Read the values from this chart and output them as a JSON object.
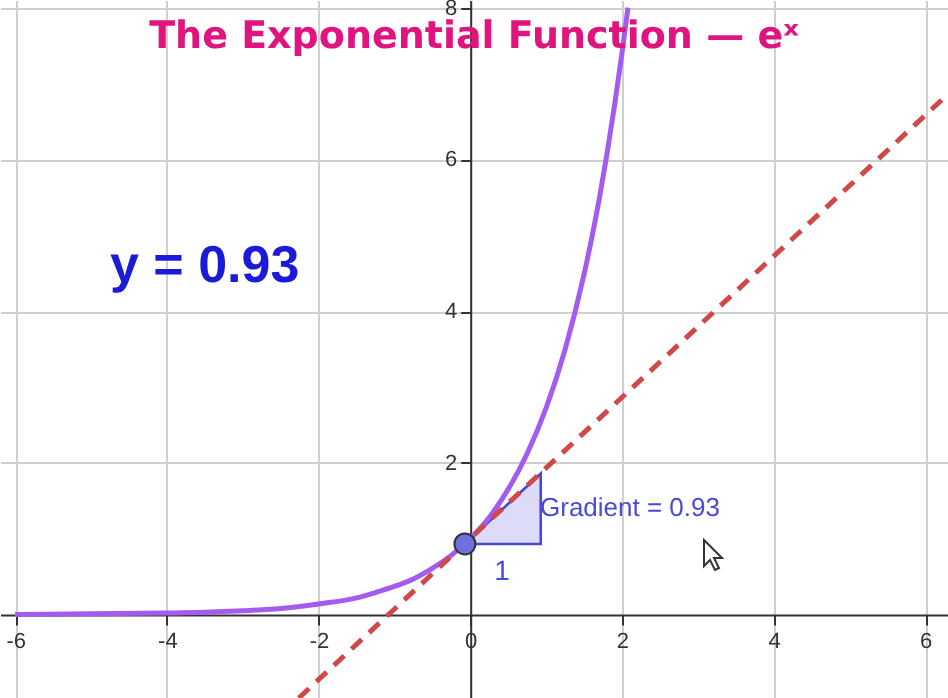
{
  "chart_data": {
    "type": "line",
    "title": "The Exponential Function — eˣ",
    "xlim": [
      -6.2,
      6.3
    ],
    "ylim": [
      -1.1,
      8.1
    ],
    "xticks": [
      -6,
      -4,
      -2,
      0,
      2,
      4,
      6
    ],
    "yticks": [
      2,
      4,
      6,
      8
    ],
    "grid": true,
    "series": [
      {
        "type": "line",
        "color": "#a45cf0",
        "line_style": "solid",
        "marker": "none",
        "x": [
          -6,
          -5,
          -4,
          -3.5,
          -3,
          -2.5,
          -2,
          -1.5,
          -1.25,
          -1,
          -0.75,
          -0.5,
          -0.25,
          0,
          0.25,
          0.5,
          0.75,
          1,
          1.25,
          1.5,
          1.6,
          1.7,
          1.8,
          1.9,
          2,
          2.08
        ],
        "values": [
          0,
          0.01,
          0.02,
          0.03,
          0.05,
          0.08,
          0.14,
          0.22,
          0.29,
          0.37,
          0.47,
          0.61,
          0.78,
          1,
          1.28,
          1.65,
          2.12,
          2.72,
          3.49,
          4.48,
          4.95,
          5.47,
          6.05,
          6.69,
          7.39,
          8
        ]
      },
      {
        "type": "line",
        "color": "#d04848",
        "line_style": "dashed",
        "marker": "none",
        "x": [
          -2.26,
          6.3
        ],
        "values": [
          -1.1,
          6.86
        ]
      },
      {
        "type": "scatter",
        "color": "#7070e0",
        "marker": "circle",
        "x": [
          -0.07
        ],
        "values": [
          0.93
        ]
      }
    ],
    "annotations": [
      "y = 0.93",
      "Gradient = 0.93",
      "1"
    ]
  }
}
